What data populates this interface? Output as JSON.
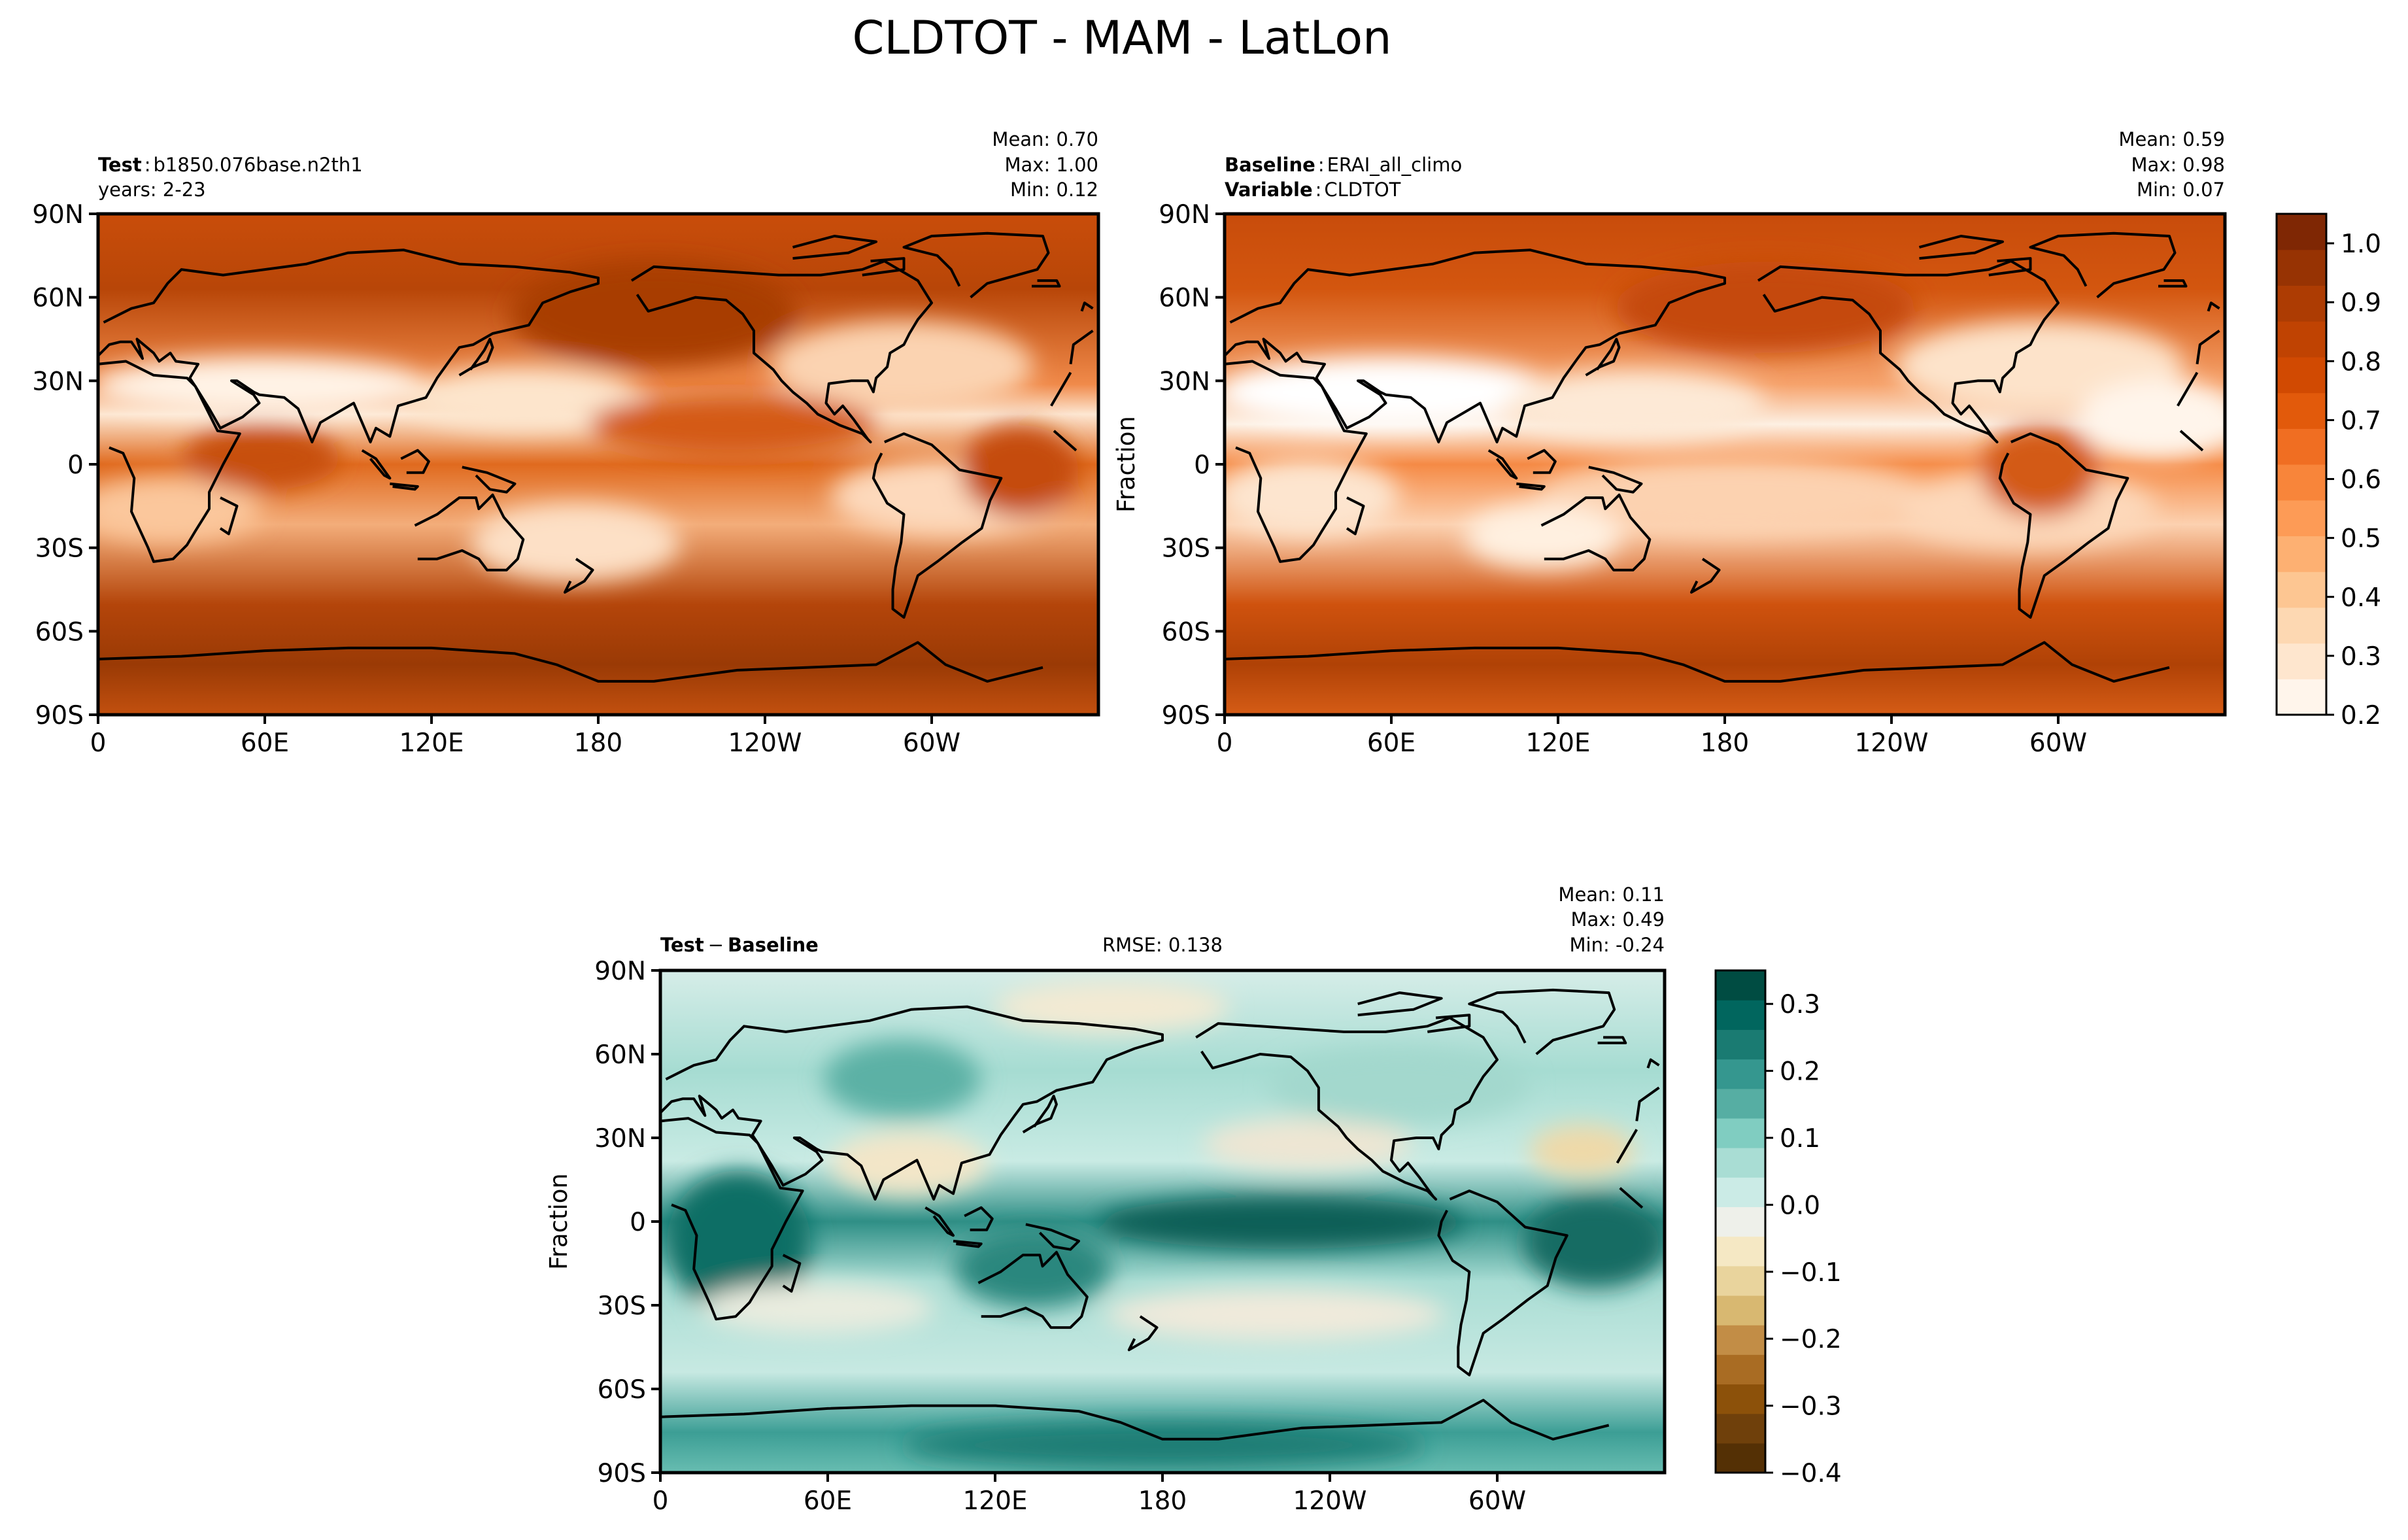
{
  "figure": {
    "title": "CLDTOT - MAM - LatLon"
  },
  "panels": {
    "test": {
      "label_bold": "Test",
      "label_sep": ":",
      "label_value": "b1850.076base.n2th1",
      "line2": "years: 2-23",
      "stats": [
        "Mean:  0.70",
        "Max:  1.00",
        "Min:  0.12"
      ]
    },
    "baseline": {
      "label_bold": "Baseline",
      "label_sep": ":",
      "label_value": "ERAI_all_climo",
      "line2_bold": "Variable",
      "line2_sep": ":",
      "line2_value": "CLDTOT",
      "stats": [
        "Mean:  0.59",
        "Max:  0.98",
        "Min:  0.07"
      ],
      "ylabel": "Fraction"
    },
    "diff": {
      "label_a": "Test",
      "label_minus": "−",
      "label_b": "Baseline",
      "rmse": "RMSE: 0.138",
      "stats": [
        "Mean:  0.11",
        "Max:  0.49",
        "Min: -0.24"
      ],
      "ylabel": "Fraction"
    }
  },
  "axes": {
    "lat_ticks": [
      "90N",
      "60N",
      "30N",
      "0",
      "30S",
      "60S",
      "90S"
    ],
    "lon_ticks": [
      "0",
      "60E",
      "120E",
      "180",
      "120W",
      "60W"
    ]
  },
  "chart_data": [
    {
      "type": "heatmap",
      "title": "Test: b1850.076base.n2th1 (years: 2-23)",
      "variable": "CLDTOT",
      "units": "Fraction",
      "x": "longitude 0-360",
      "y": "latitude -90-90",
      "mean": 0.7,
      "max": 1.0,
      "min": 0.12,
      "colormap": "Oranges",
      "clim": [
        0.2,
        1.05
      ]
    },
    {
      "type": "heatmap",
      "title": "Baseline: ERAI_all_climo",
      "variable": "CLDTOT",
      "units": "Fraction",
      "mean": 0.59,
      "max": 0.98,
      "min": 0.07,
      "colormap": "Oranges",
      "clim": [
        0.2,
        1.05
      ],
      "colorbar_ticks": [
        "1.0",
        "0.9",
        "0.8",
        "0.7",
        "0.6",
        "0.5",
        "0.4",
        "0.3",
        "0.2"
      ],
      "colorbar_colors": [
        "#fff5eb",
        "#fee6ce",
        "#fdd8b2",
        "#fdc692",
        "#fdb072",
        "#fd9b56",
        "#f8853a",
        "#f06e22",
        "#e25a0b",
        "#d14a02",
        "#c04302",
        "#ad3c03",
        "#973303",
        "#7f2704"
      ]
    },
    {
      "type": "heatmap",
      "title": "Test − Baseline",
      "variable": "CLDTOT difference",
      "units": "Fraction",
      "mean": 0.11,
      "max": 0.49,
      "min": -0.24,
      "rmse": 0.138,
      "colormap": "BrBG",
      "clim": [
        -0.4,
        0.35
      ],
      "colorbar_ticks": [
        "0.3",
        "0.2",
        "0.1",
        "0.0",
        "−0.1",
        "−0.2",
        "−0.3",
        "−0.4"
      ],
      "colorbar_colors": [
        "#543005",
        "#6f400b",
        "#8c510a",
        "#a96c23",
        "#c28d46",
        "#d8b871",
        "#e9d49d",
        "#f5e8c4",
        "#eef0ea",
        "#cbebe6",
        "#a9ddd4",
        "#80cdc1",
        "#56aea3",
        "#35978f",
        "#1a7b72",
        "#01665e",
        "#004c42"
      ]
    }
  ]
}
